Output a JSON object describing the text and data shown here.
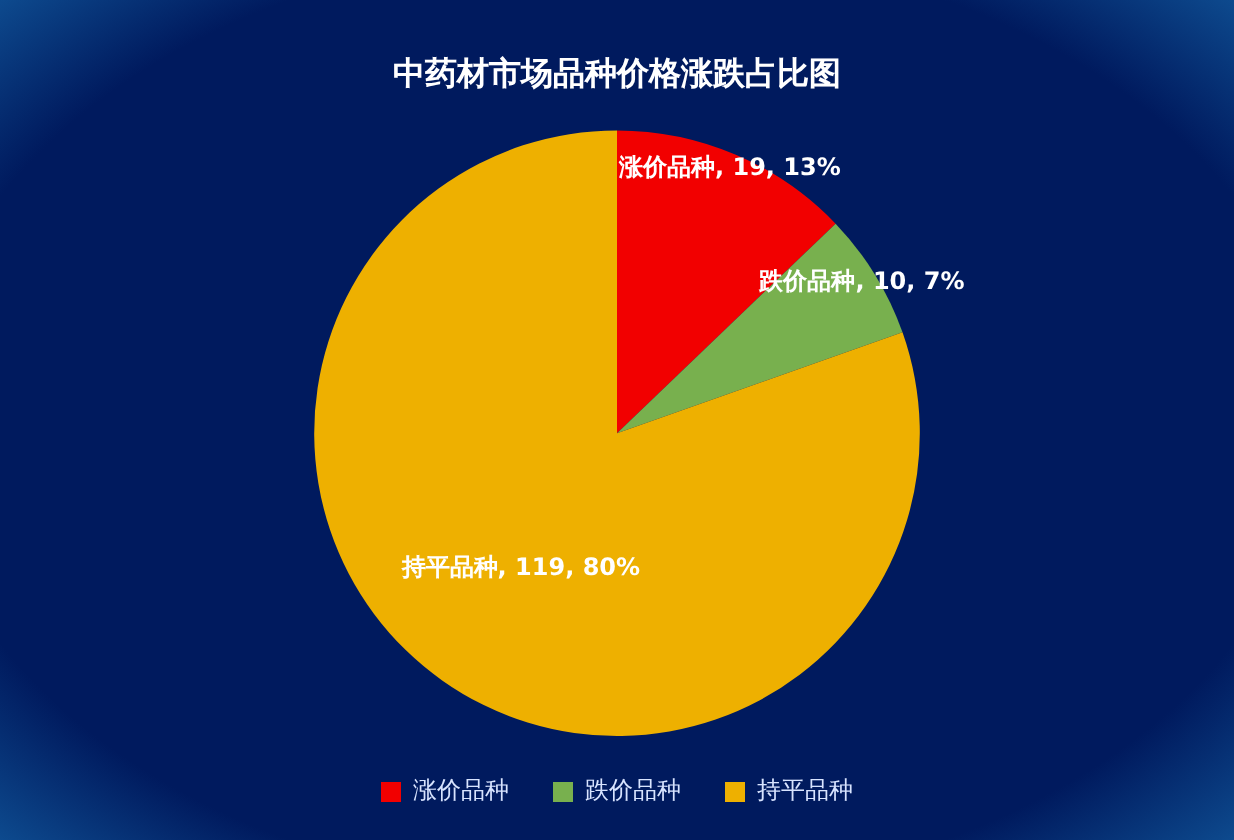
{
  "chart_data": {
    "type": "pie",
    "title": "中药材市场品种价格涨跌占比图",
    "categories": [
      "涨价品种",
      "跌价品种",
      "持平品种"
    ],
    "values": [
      19,
      10,
      119
    ],
    "colors": [
      "#f20000",
      "#78b04e",
      "#eeb000"
    ],
    "value_labels": [
      "涨价品种, 19, 13%",
      "跌价品种, 10, 7%",
      "持平品种, 119, 80%"
    ],
    "legend": "bottom"
  }
}
